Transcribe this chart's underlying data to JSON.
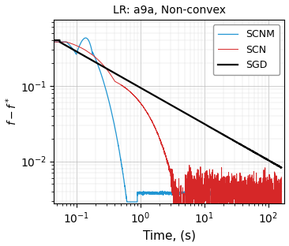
{
  "title": "LR: a9a, Non-convex",
  "xlabel": "Time, (s)",
  "ylabel": "$f - f^*$",
  "xlim": [
    0.045,
    180
  ],
  "ylim": [
    0.0028,
    0.75
  ],
  "lines": {
    "SCNM": {
      "color": "#2196d3",
      "linewidth": 0.9
    },
    "SCN": {
      "color": "#d62728",
      "linewidth": 0.7
    },
    "SGD": {
      "color": "#000000",
      "linewidth": 1.6
    }
  },
  "grid": true,
  "background_color": "#ffffff"
}
